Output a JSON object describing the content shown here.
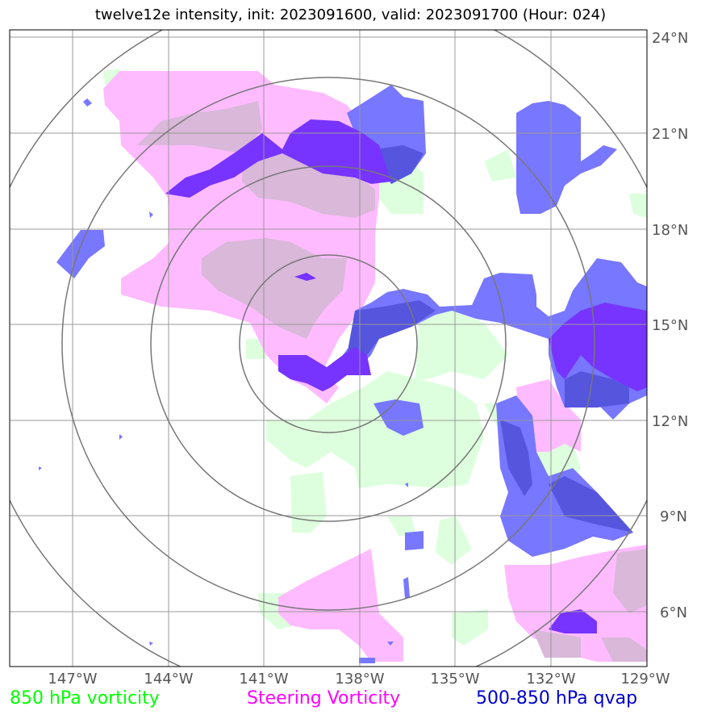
{
  "title": "twelve12e intensity, init: 2023091600, valid: 2023091700 (Hour: 024)",
  "lon_ticks": [
    "147°W",
    "144°W",
    "141°W",
    "138°W",
    "135°W",
    "132°W",
    "129°W"
  ],
  "lat_ticks": [
    "24°N",
    "21°N",
    "18°N",
    "15°N",
    "12°N",
    "9°N",
    "6°N"
  ],
  "legend": [
    {
      "label": "850 hPa vorticity",
      "color": "#00ff00"
    },
    {
      "label": "Steering Vorticity",
      "color": "#ff00ff"
    },
    {
      "label": "500-850 hPa qvap",
      "color": "#0000cc"
    }
  ],
  "colors": {
    "vorticity_850": "#ddffdd",
    "steering": "#ffbbff",
    "steering_dark": "#d9b8d9",
    "qvap": "#7777ff",
    "qvap_dark": "#7733ff",
    "qvap_overlap": "#5555dd",
    "grid": "#999999",
    "rings": "#777777"
  }
}
